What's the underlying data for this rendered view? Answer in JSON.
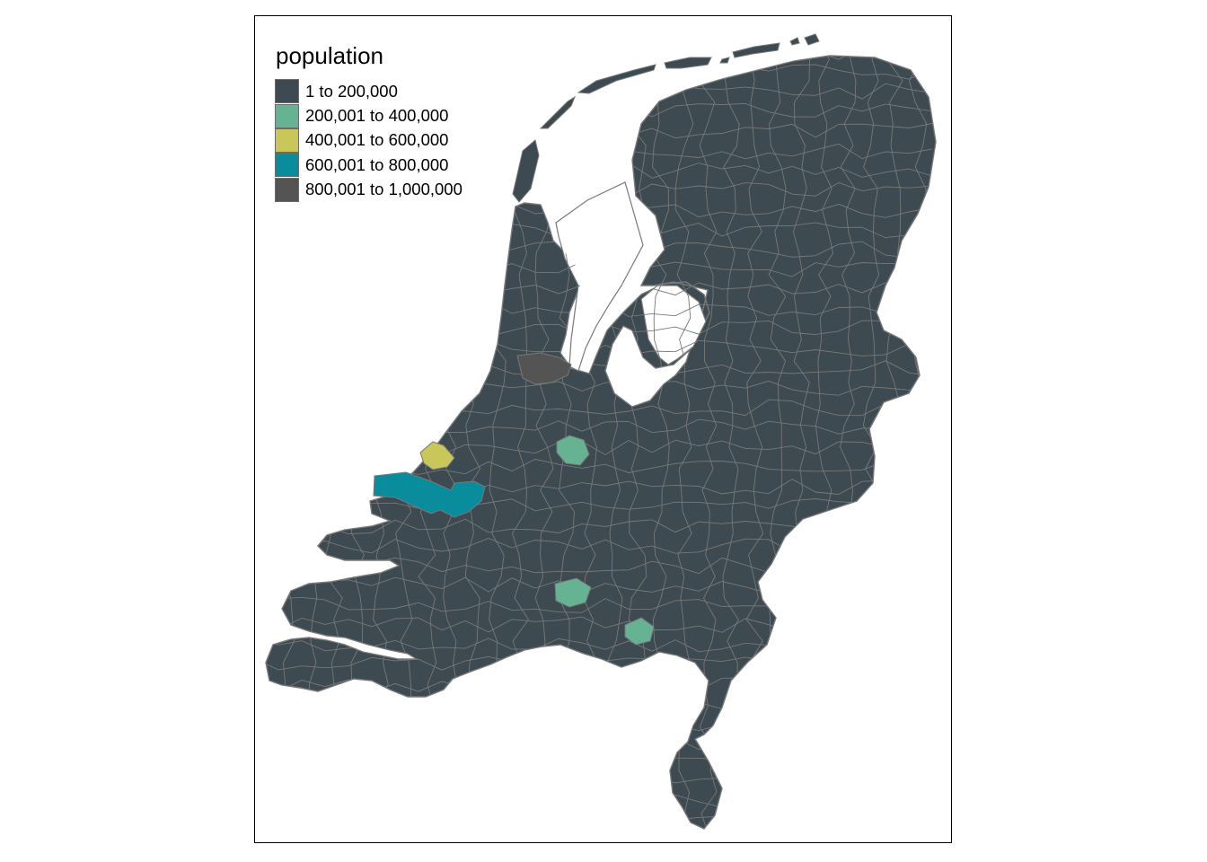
{
  "map": {
    "legend_title": "population",
    "legend": [
      {
        "label": "1 to 200,000",
        "color": "#3d4a51"
      },
      {
        "label": "200,001 to 400,000",
        "color": "#66b394"
      },
      {
        "label": "400,001 to 600,000",
        "color": "#c9c65a"
      },
      {
        "label": "600,001 to 800,000",
        "color": "#098d9c"
      },
      {
        "label": "800,001 to 1,000,000",
        "color": "#545454"
      }
    ],
    "border_color": "#787878"
  }
}
